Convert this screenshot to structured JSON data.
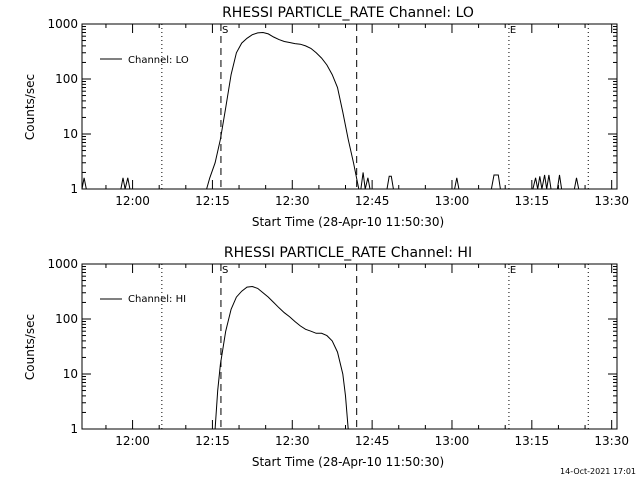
{
  "footer": {
    "timestamp": "14-Oct-2021 17:01"
  },
  "chart_data": [
    {
      "type": "line",
      "title": "RHESSI PARTICLE_RATE Channel: LO",
      "xlabel": "Start Time (28-Apr-10 11:50:30)",
      "ylabel": "Counts/sec",
      "x_unit": "minutes after 11:50:30",
      "xlim": [
        0,
        100.5
      ],
      "ylim": [
        1,
        1000
      ],
      "yscale": "log",
      "xticks": [
        {
          "x": 9.5,
          "label": "12:00"
        },
        {
          "x": 24.5,
          "label": "12:15"
        },
        {
          "x": 39.5,
          "label": "12:30"
        },
        {
          "x": 54.5,
          "label": "12:45"
        },
        {
          "x": 69.5,
          "label": "13:00"
        },
        {
          "x": 84.5,
          "label": "13:15"
        },
        {
          "x": 99.5,
          "label": "13:30"
        }
      ],
      "yticks": [
        {
          "y": 1,
          "label": "1"
        },
        {
          "y": 10,
          "label": "10"
        },
        {
          "y": 100,
          "label": "100"
        },
        {
          "y": 1000,
          "label": "1000"
        }
      ],
      "legend": {
        "label": "Channel: LO",
        "placement": "top-left"
      },
      "markers": [
        {
          "x": 26.1,
          "label": "S",
          "style": "dashed"
        },
        {
          "x": 51.6,
          "label": "",
          "style": "dashed"
        },
        {
          "x": 15.0,
          "label": "",
          "style": "dotted"
        },
        {
          "x": 80.2,
          "label": "E",
          "style": "dotted"
        },
        {
          "x": 95.1,
          "label": "",
          "style": "dotted"
        }
      ],
      "series": [
        {
          "name": "Channel: LO",
          "points": [
            [
              0,
              1
            ],
            [
              0.4,
              1.6
            ],
            [
              0.8,
              1
            ],
            [
              7.3,
              1
            ],
            [
              7.7,
              1.6
            ],
            [
              8.1,
              1
            ],
            [
              8.6,
              1.6
            ],
            [
              9.0,
              1
            ],
            [
              23.4,
              1
            ],
            [
              24.0,
              1.6
            ],
            [
              25.0,
              3
            ],
            [
              26.0,
              8
            ],
            [
              27.0,
              30
            ],
            [
              28.0,
              120
            ],
            [
              29.0,
              300
            ],
            [
              30.0,
              450
            ],
            [
              31.0,
              550
            ],
            [
              32.0,
              640
            ],
            [
              33.0,
              690
            ],
            [
              34.0,
              700
            ],
            [
              35.0,
              660
            ],
            [
              36.0,
              580
            ],
            [
              37.0,
              520
            ],
            [
              38.0,
              480
            ],
            [
              39.0,
              460
            ],
            [
              40.0,
              440
            ],
            [
              41.0,
              430
            ],
            [
              42.0,
              400
            ],
            [
              43.0,
              360
            ],
            [
              44.0,
              300
            ],
            [
              45.0,
              240
            ],
            [
              46.0,
              180
            ],
            [
              47.0,
              120
            ],
            [
              48.0,
              70
            ],
            [
              49.0,
              25
            ],
            [
              50.0,
              8
            ],
            [
              51.0,
              3
            ],
            [
              52.0,
              1
            ],
            [
              52.4,
              1
            ],
            [
              52.8,
              2
            ],
            [
              53.2,
              1
            ],
            [
              53.7,
              1.6
            ],
            [
              54.1,
              1
            ],
            [
              57.3,
              1
            ],
            [
              57.7,
              1.7
            ],
            [
              58.1,
              1.7
            ],
            [
              58.5,
              1
            ],
            [
              70.0,
              1
            ],
            [
              70.4,
              1.6
            ],
            [
              70.8,
              1
            ],
            [
              76.9,
              1
            ],
            [
              77.4,
              1.8
            ],
            [
              78.2,
              1.8
            ],
            [
              78.6,
              1
            ],
            [
              84.7,
              1
            ],
            [
              85.2,
              1.6
            ],
            [
              85.6,
              1
            ],
            [
              86.0,
              1.7
            ],
            [
              86.4,
              1
            ],
            [
              86.9,
              1.8
            ],
            [
              87.3,
              1
            ],
            [
              87.7,
              1.8
            ],
            [
              88.1,
              1
            ],
            [
              89.3,
              1
            ],
            [
              89.7,
              1.8
            ],
            [
              90.1,
              1
            ],
            [
              92.5,
              1
            ],
            [
              92.9,
              1.6
            ],
            [
              93.3,
              1
            ],
            [
              100.5,
              1
            ]
          ]
        }
      ]
    },
    {
      "type": "line",
      "title": "RHESSI PARTICLE_RATE Channel: HI",
      "xlabel": "Start Time (28-Apr-10 11:50:30)",
      "ylabel": "Counts/sec",
      "x_unit": "minutes after 11:50:30",
      "xlim": [
        0,
        100.5
      ],
      "ylim": [
        1,
        1000
      ],
      "yscale": "log",
      "xticks": [
        {
          "x": 9.5,
          "label": "12:00"
        },
        {
          "x": 24.5,
          "label": "12:15"
        },
        {
          "x": 39.5,
          "label": "12:30"
        },
        {
          "x": 54.5,
          "label": "12:45"
        },
        {
          "x": 69.5,
          "label": "13:00"
        },
        {
          "x": 84.5,
          "label": "13:15"
        },
        {
          "x": 99.5,
          "label": "13:30"
        }
      ],
      "yticks": [
        {
          "y": 1,
          "label": "1"
        },
        {
          "y": 10,
          "label": "10"
        },
        {
          "y": 100,
          "label": "100"
        },
        {
          "y": 1000,
          "label": "1000"
        }
      ],
      "legend": {
        "label": "Channel: HI",
        "placement": "top-left"
      },
      "markers": [
        {
          "x": 26.1,
          "label": "S",
          "style": "dashed"
        },
        {
          "x": 51.6,
          "label": "",
          "style": "dashed"
        },
        {
          "x": 15.0,
          "label": "",
          "style": "dotted"
        },
        {
          "x": 80.2,
          "label": "E",
          "style": "dotted"
        },
        {
          "x": 95.1,
          "label": "",
          "style": "dotted"
        }
      ],
      "series": [
        {
          "name": "Channel: HI",
          "points": [
            [
              25.0,
              1
            ],
            [
              25.5,
              5
            ],
            [
              26.0,
              15
            ],
            [
              27.0,
              60
            ],
            [
              28.0,
              150
            ],
            [
              29.0,
              250
            ],
            [
              30.0,
              320
            ],
            [
              31.0,
              380
            ],
            [
              32.0,
              390
            ],
            [
              33.0,
              360
            ],
            [
              34.0,
              300
            ],
            [
              35.0,
              250
            ],
            [
              36.0,
              200
            ],
            [
              37.0,
              160
            ],
            [
              38.0,
              130
            ],
            [
              39.0,
              110
            ],
            [
              40.0,
              90
            ],
            [
              41.0,
              75
            ],
            [
              42.0,
              65
            ],
            [
              43.0,
              60
            ],
            [
              44.0,
              55
            ],
            [
              45.0,
              55
            ],
            [
              46.0,
              50
            ],
            [
              47.0,
              40
            ],
            [
              48.0,
              25
            ],
            [
              49.0,
              10
            ],
            [
              49.5,
              4
            ],
            [
              50.0,
              1
            ]
          ]
        }
      ]
    }
  ]
}
